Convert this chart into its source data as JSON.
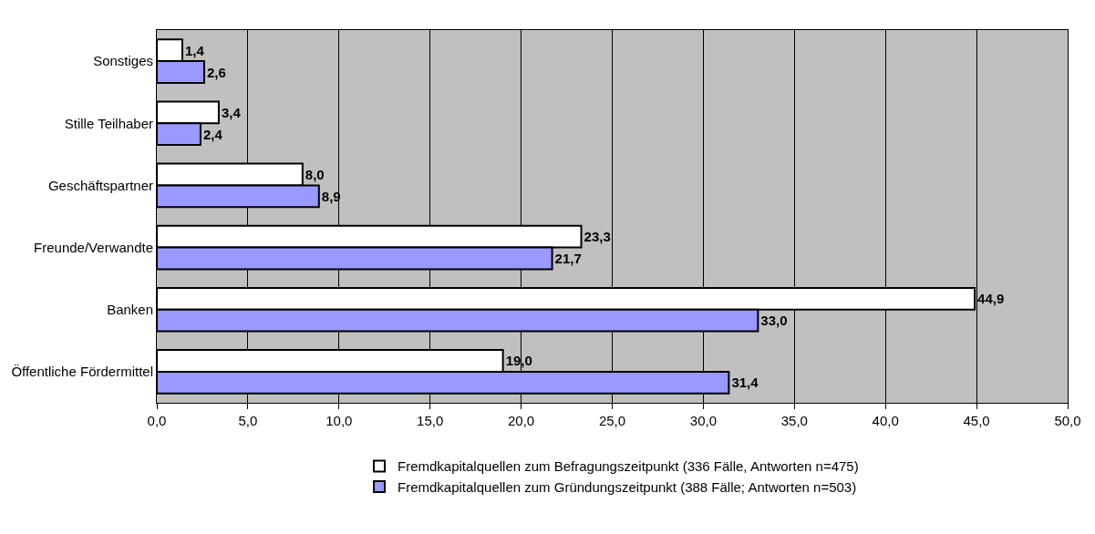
{
  "chart_data": {
    "type": "bar",
    "orientation": "horizontal",
    "categories": [
      "Sonstiges",
      "Stille Teilhaber",
      "Geschäftspartner",
      "Freunde/Verwandte",
      "Banken",
      "Öffentliche Fördermittel"
    ],
    "series": [
      {
        "name": "Fremdkapitalquellen zum Befragungszeitpunkt (336 Fälle, Antworten n=475)",
        "color": "#ffffff",
        "values": [
          1.4,
          3.4,
          8.0,
          23.3,
          44.9,
          19.0
        ],
        "value_labels": [
          "1,4",
          "3,4",
          "8,0",
          "23,3",
          "44,9",
          "19,0"
        ]
      },
      {
        "name": "Fremdkapitalquellen zum Gründungszeitpunkt (388 Fälle; Antworten n=503)",
        "color": "#9999ff",
        "values": [
          2.6,
          2.4,
          8.9,
          21.7,
          33.0,
          31.4
        ],
        "value_labels": [
          "2,6",
          "2,4",
          "8,9",
          "21,7",
          "33,0",
          "31,4"
        ]
      }
    ],
    "xlim": [
      0,
      50
    ],
    "xticks": [
      {
        "value": 0,
        "label": "0,0"
      },
      {
        "value": 5,
        "label": "5,0"
      },
      {
        "value": 10,
        "label": "10,0"
      },
      {
        "value": 15,
        "label": "15,0"
      },
      {
        "value": 20,
        "label": "20,0"
      },
      {
        "value": 25,
        "label": "25,0"
      },
      {
        "value": 30,
        "label": "30,0"
      },
      {
        "value": 35,
        "label": "35,0"
      },
      {
        "value": 40,
        "label": "40,0"
      },
      {
        "value": 45,
        "label": "45,0"
      },
      {
        "value": 50,
        "label": "50,0"
      }
    ],
    "grid": "x",
    "legend": "bottom"
  }
}
